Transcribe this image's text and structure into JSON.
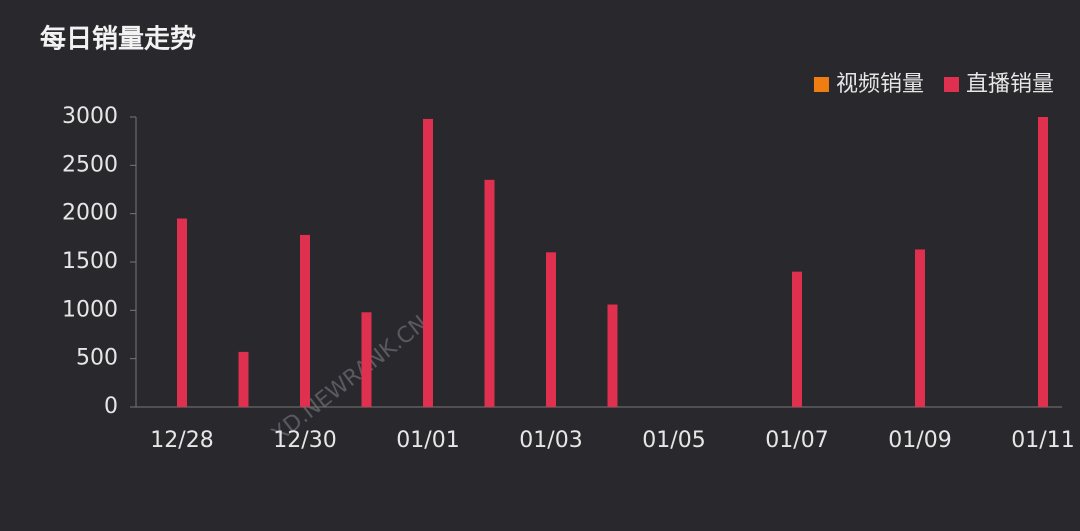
{
  "chart_data": {
    "type": "bar",
    "title": "每日销量走势",
    "watermark": "XD.NEWRANK.CN",
    "categories": [
      "12/28",
      null,
      "12/30",
      null,
      "01/01",
      null,
      "01/03",
      null,
      "01/05",
      null,
      "01/07",
      null,
      "01/09",
      null,
      "01/11"
    ],
    "series": [
      {
        "name": "视频销量",
        "color": "#f07d12",
        "values": [
          0,
          0,
          0,
          0,
          0,
          0,
          0,
          0,
          0,
          0,
          0,
          0,
          0,
          0,
          0
        ]
      },
      {
        "name": "直播销量",
        "color": "#e0304f",
        "values": [
          1950,
          570,
          1780,
          980,
          2980,
          2350,
          1600,
          1060,
          0,
          0,
          1400,
          0,
          1630,
          0,
          3000
        ]
      }
    ],
    "ylim": [
      0,
      3000
    ],
    "yticks": [
      0,
      500,
      1000,
      1500,
      2000,
      2500,
      3000
    ],
    "legend": "top-right"
  }
}
